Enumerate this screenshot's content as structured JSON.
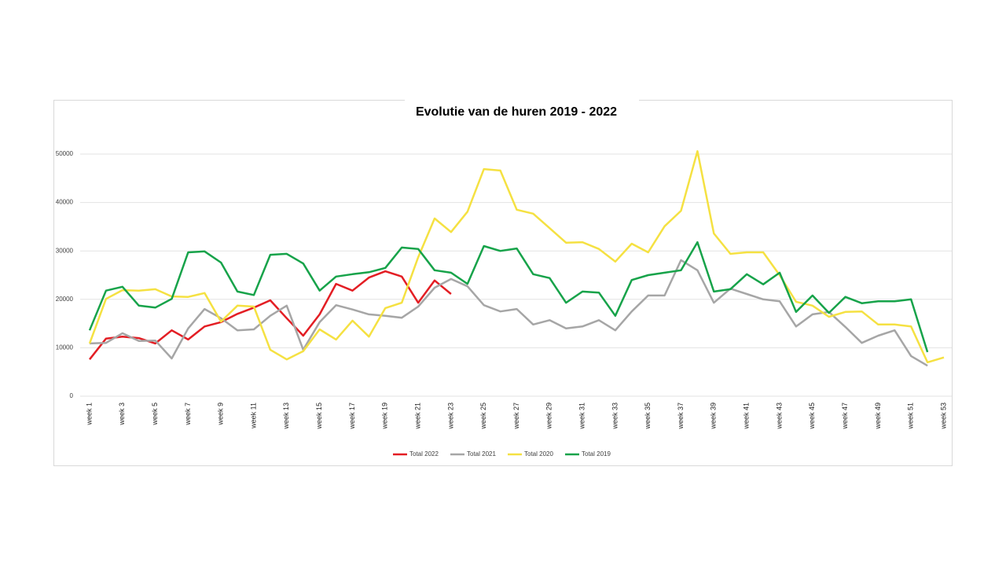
{
  "chart_data": {
    "type": "line",
    "title": "Evolutie van de huren 2019 - 2022",
    "categories": [
      "week 1",
      null,
      "week 3",
      null,
      "week 5",
      null,
      "week 7",
      null,
      "week 9",
      null,
      "week 11",
      null,
      "week 13",
      null,
      "week 15",
      null,
      "week 17",
      null,
      "week 19",
      null,
      "week 21",
      null,
      "week 23",
      null,
      "week 25",
      null,
      "week 27",
      null,
      "week 29",
      null,
      "week 31",
      null,
      "week 33",
      null,
      "week 35",
      null,
      "week 37",
      null,
      "week 39",
      null,
      "week 41",
      null,
      "week 43",
      null,
      "week 45",
      null,
      "week 47",
      null,
      "week 49",
      null,
      "week 51",
      null,
      "week 53"
    ],
    "series": [
      {
        "name": "Total 2022",
        "color": "#e31e24",
        "values": [
          7600,
          11900,
          12300,
          12000,
          10900,
          13600,
          11700,
          14400,
          15300,
          17000,
          18300,
          19800,
          16100,
          12500,
          16900,
          23200,
          21800,
          24500,
          25800,
          24700,
          19300,
          23900,
          21100,
          null,
          null,
          null,
          null,
          null,
          null,
          null,
          null,
          null,
          null,
          null,
          null,
          null,
          null,
          null,
          null,
          null,
          null,
          null,
          null,
          null,
          null,
          null,
          null,
          null,
          null,
          null,
          null,
          null,
          null
        ]
      },
      {
        "name": "Total 2021",
        "color": "#a6a6a6",
        "values": [
          10900,
          11000,
          13000,
          11400,
          11500,
          7800,
          14000,
          18000,
          16100,
          13600,
          13800,
          16600,
          18700,
          9600,
          15300,
          18800,
          17900,
          16900,
          16600,
          16200,
          18500,
          22400,
          24200,
          22700,
          18800,
          17500,
          18000,
          14800,
          15700,
          14000,
          14400,
          15700,
          13600,
          17500,
          20800,
          20800,
          28100,
          26000,
          19300,
          22200,
          21100,
          20000,
          19600,
          14400,
          16900,
          17400,
          14300,
          11000,
          12500,
          13600,
          8300,
          6300,
          null
        ]
      },
      {
        "name": "Total 2020",
        "color": "#f5e142",
        "values": [
          10900,
          20100,
          21900,
          21800,
          22100,
          20600,
          20500,
          21300,
          15400,
          18700,
          18500,
          9600,
          7600,
          9300,
          13800,
          11700,
          15600,
          12300,
          18200,
          19300,
          28700,
          36700,
          33900,
          38100,
          46900,
          46600,
          38500,
          37700,
          34700,
          31700,
          31800,
          30400,
          27800,
          31500,
          29700,
          35100,
          38300,
          50600,
          33600,
          29400,
          29700,
          29700,
          25000,
          19500,
          18700,
          16400,
          17400,
          17500,
          14800,
          14800,
          14400,
          7000,
          8000
        ]
      },
      {
        "name": "Total 2019",
        "color": "#17a34a",
        "values": [
          13600,
          21800,
          22600,
          18700,
          18300,
          20100,
          29700,
          29900,
          27600,
          21600,
          20900,
          29200,
          29400,
          27400,
          21800,
          24700,
          25200,
          25600,
          26500,
          30700,
          30400,
          26000,
          25500,
          23200,
          31000,
          30000,
          30500,
          25200,
          24400,
          19300,
          21600,
          21400,
          16600,
          24000,
          25000,
          25500,
          26000,
          31800,
          21600,
          22100,
          25200,
          23100,
          25500,
          17400,
          20800,
          17200,
          20500,
          19200,
          19600,
          19600,
          20000,
          9100,
          null
        ]
      }
    ],
    "ylim": [
      0,
      55000
    ],
    "yticks": [
      0,
      10000,
      20000,
      30000,
      40000,
      50000
    ],
    "grid": true,
    "legend": "bottom"
  }
}
